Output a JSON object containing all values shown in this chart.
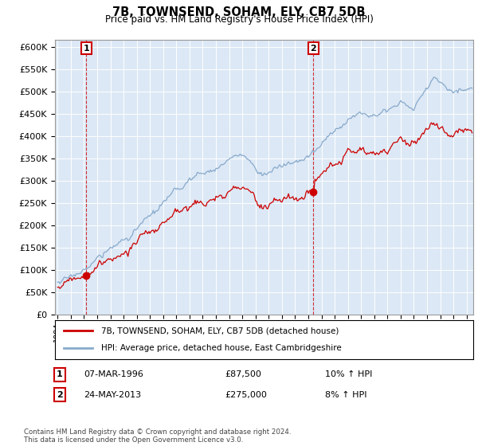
{
  "title": "7B, TOWNSEND, SOHAM, ELY, CB7 5DB",
  "subtitle": "Price paid vs. HM Land Registry's House Price Index (HPI)",
  "ylabel_ticks": [
    "£0",
    "£50K",
    "£100K",
    "£150K",
    "£200K",
    "£250K",
    "£300K",
    "£350K",
    "£400K",
    "£450K",
    "£500K",
    "£550K",
    "£600K"
  ],
  "ytick_values": [
    0,
    50000,
    100000,
    150000,
    200000,
    250000,
    300000,
    350000,
    400000,
    450000,
    500000,
    550000,
    600000
  ],
  "ylim": [
    0,
    615000
  ],
  "xlim_start": 1993.8,
  "xlim_end": 2025.5,
  "sale1_date": 1996.18,
  "sale1_price": 87500,
  "sale1_label": "1",
  "sale2_date": 2013.39,
  "sale2_price": 275000,
  "sale2_label": "2",
  "red_line_color": "#cc0000",
  "blue_line_color": "#88aacc",
  "plot_bg_color": "#dce8f5",
  "grid_color": "#ffffff",
  "bg_color": "#ffffff",
  "hpi_line_label": "HPI: Average price, detached house, East Cambridgeshire",
  "property_label": "7B, TOWNSEND, SOHAM, ELY, CB7 5DB (detached house)",
  "transaction1": "07-MAR-1996",
  "transaction1_price": "£87,500",
  "transaction1_hpi": "10% ↑ HPI",
  "transaction2": "24-MAY-2013",
  "transaction2_price": "£275,000",
  "transaction2_hpi": "8% ↑ HPI",
  "footnote": "Contains HM Land Registry data © Crown copyright and database right 2024.\nThis data is licensed under the Open Government Licence v3.0."
}
